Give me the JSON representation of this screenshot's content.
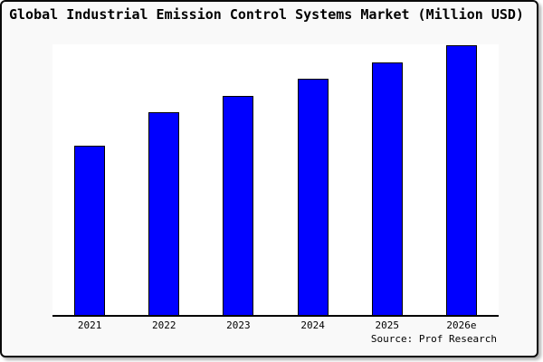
{
  "source": "Source: Prof Research",
  "chart_data": {
    "type": "bar",
    "title": "Global Industrial Emission Control Systems Market (Million USD)",
    "categories": [
      "2021",
      "2022",
      "2023",
      "2024",
      "2025",
      "2026e"
    ],
    "values": [
      62.5,
      74.8,
      81.1,
      87.4,
      93.4,
      99.7
    ],
    "value_basis": "estimated percent of plot height; chart shows no y-axis ticks or data labels",
    "xlabel": "",
    "ylabel": "",
    "ylim": [
      0,
      100
    ],
    "grid": false,
    "legend": false,
    "bar_color": "#0000ff",
    "bar_edge_color": "#000000",
    "plot_bg": "#ffffff",
    "fig_bg": "#f9f9f9",
    "axis_color": "#000000"
  }
}
